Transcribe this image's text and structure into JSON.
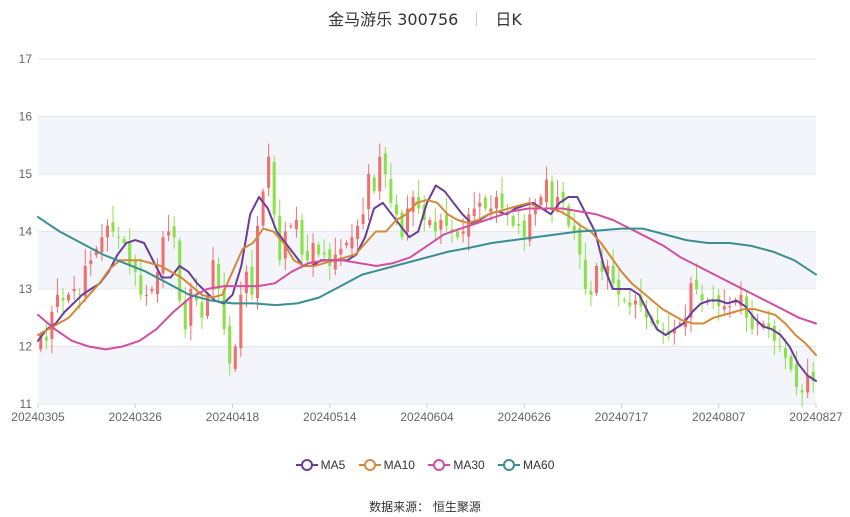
{
  "title": {
    "stock": "金马游乐 300756",
    "period": "日K"
  },
  "source": {
    "label": "数据来源：",
    "value": "恒生聚源"
  },
  "colors": {
    "up": "#f07070",
    "down": "#8ce04b",
    "MA5": "#6a3d9a",
    "MA10": "#d4893a",
    "MA30": "#d24fa0",
    "MA60": "#3a8f8f",
    "band": "#f3f5fb",
    "grid": "#e3e6ee"
  },
  "chart_data": {
    "type": "candlestick",
    "ylim": [
      11,
      17
    ],
    "yticks": [
      11,
      12,
      13,
      14,
      15,
      16,
      17
    ],
    "xticks": [
      "20240305",
      "20240326",
      "20240418",
      "20240514",
      "20240604",
      "20240626",
      "20240717",
      "20240807",
      "20240827"
    ],
    "grid": true,
    "legend_position": "bottom",
    "legend": [
      "MA5",
      "MA10",
      "MA30",
      "MA60"
    ],
    "close": [
      12.2,
      12.1,
      12.6,
      12.9,
      12.8,
      12.9,
      13.0,
      12.9,
      13.4,
      13.5,
      13.7,
      13.9,
      14.1,
      14.0,
      13.9,
      13.8,
      13.4,
      13.3,
      12.9,
      12.9,
      13.0,
      13.3,
      13.9,
      14.0,
      13.9,
      12.8,
      12.3,
      13.0,
      12.8,
      12.5,
      12.9,
      13.5,
      13.0,
      12.3,
      11.7,
      12.0,
      12.9,
      13.3,
      12.9,
      14.1,
      14.7,
      15.3,
      14.3,
      13.5,
      14.0,
      14.1,
      14.2,
      13.6,
      13.5,
      13.8,
      13.6,
      13.6,
      13.4,
      13.6,
      13.7,
      13.8,
      13.9,
      14.1,
      14.3,
      15.0,
      14.7,
      15.3,
      15.0,
      14.5,
      14.3,
      13.9,
      14.4,
      14.6,
      14.4,
      14.2,
      14.2,
      14.0,
      14.2,
      14.1,
      14.0,
      13.9,
      14.0,
      14.3,
      14.4,
      14.5,
      14.4,
      14.4,
      14.6,
      14.4,
      14.3,
      14.1,
      14.1,
      13.9,
      14.3,
      14.4,
      14.6,
      14.9,
      14.4,
      14.6,
      14.5,
      14.1,
      14.0,
      13.6,
      13.0,
      12.9,
      13.4,
      13.3,
      13.4,
      13.1,
      12.9,
      12.8,
      12.7,
      12.8,
      12.7,
      12.5,
      12.4,
      12.4,
      12.3,
      12.2,
      12.3,
      12.4,
      12.5,
      13.1,
      13.0,
      12.8,
      12.8,
      12.8,
      12.7,
      12.7,
      12.7,
      12.8,
      12.9,
      12.5,
      12.3,
      12.4,
      12.4,
      12.3,
      12.1,
      12.0,
      11.8,
      11.6,
      11.3,
      11.2,
      11.5,
      11.4
    ],
    "series": [
      {
        "name": "MA5",
        "values": [
          12.1,
          12.3,
          12.4,
          12.6,
          12.75,
          12.9,
          13.0,
          13.1,
          13.3,
          13.6,
          13.8,
          13.85,
          13.8,
          13.5,
          13.2,
          13.2,
          13.4,
          13.3,
          13.1,
          12.95,
          12.8,
          12.75,
          12.9,
          13.4,
          14.3,
          14.6,
          14.4,
          14.0,
          13.8,
          13.6,
          13.4,
          13.4,
          13.5,
          13.5,
          13.5,
          13.5,
          13.6,
          13.9,
          14.4,
          14.5,
          14.3,
          14.1,
          13.9,
          14.0,
          14.5,
          14.8,
          14.7,
          14.5,
          14.3,
          14.15,
          14.2,
          14.3,
          14.35,
          14.3,
          14.4,
          14.45,
          14.5,
          14.4,
          14.3,
          14.5,
          14.6,
          14.6,
          14.3,
          14.0,
          13.4,
          13.0,
          13.0,
          13.0,
          12.9,
          12.6,
          12.3,
          12.2,
          12.3,
          12.4,
          12.6,
          12.75,
          12.8,
          12.8,
          12.75,
          12.8,
          12.7,
          12.5,
          12.35,
          12.3,
          12.2,
          12.0,
          11.7,
          11.5,
          11.4
        ]
      },
      {
        "name": "MA10",
        "values": [
          12.2,
          12.3,
          12.4,
          12.5,
          12.7,
          12.9,
          13.1,
          13.35,
          13.5,
          13.5,
          13.5,
          13.45,
          13.4,
          13.3,
          13.2,
          13.05,
          12.9,
          12.85,
          12.9,
          13.3,
          13.7,
          13.8,
          14.05,
          14.0,
          13.8,
          13.5,
          13.4,
          13.4,
          13.45,
          13.5,
          13.55,
          13.6,
          13.8,
          14.0,
          14.0,
          14.2,
          14.3,
          14.5,
          14.55,
          14.5,
          14.3,
          14.2,
          14.15,
          14.2,
          14.3,
          14.35,
          14.4,
          14.45,
          14.5,
          14.4,
          14.4,
          14.35,
          14.25,
          14.1,
          14.0,
          13.8,
          13.55,
          13.3,
          13.1,
          12.95,
          12.8,
          12.65,
          12.55,
          12.45,
          12.4,
          12.4,
          12.5,
          12.55,
          12.6,
          12.65,
          12.65,
          12.6,
          12.55,
          12.4,
          12.2,
          12.05,
          11.85
        ]
      },
      {
        "name": "MA30",
        "values": [
          12.55,
          12.3,
          12.1,
          12.0,
          11.95,
          12.0,
          12.1,
          12.3,
          12.6,
          12.85,
          13.0,
          13.05,
          13.05,
          13.05,
          13.1,
          13.3,
          13.45,
          13.5,
          13.5,
          13.45,
          13.4,
          13.45,
          13.55,
          13.75,
          13.95,
          14.05,
          14.15,
          14.25,
          14.35,
          14.4,
          14.4,
          14.4,
          14.35,
          14.3,
          14.2,
          14.05,
          13.9,
          13.75,
          13.55,
          13.4,
          13.25,
          13.1,
          12.95,
          12.8,
          12.65,
          12.5,
          12.4
        ]
      },
      {
        "name": "MA60",
        "values": [
          14.25,
          14.0,
          13.8,
          13.6,
          13.45,
          13.3,
          13.1,
          12.9,
          12.8,
          12.75,
          12.75,
          12.72,
          12.75,
          12.85,
          13.05,
          13.25,
          13.35,
          13.45,
          13.55,
          13.65,
          13.72,
          13.8,
          13.85,
          13.9,
          13.95,
          14.0,
          14.02,
          14.05,
          14.05,
          13.95,
          13.85,
          13.8,
          13.8,
          13.75,
          13.65,
          13.5,
          13.25
        ]
      }
    ]
  }
}
